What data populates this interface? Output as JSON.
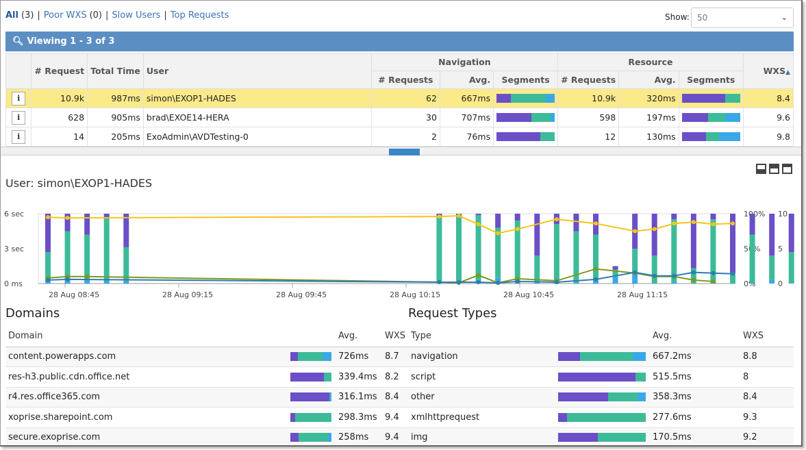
{
  "colors": {
    "purple": "#6a4fc7",
    "teal": "#3dbb98",
    "blue": "#3aa8e6",
    "yellow": "#f5c518",
    "green": "#7a9a1a",
    "darkblue": "#2f7bb3",
    "header_blue": "#5b8ec3",
    "highlight": "#faea8a"
  },
  "filters": [
    {
      "label": "All",
      "count": "(3)",
      "active": true
    },
    {
      "label": "Poor WXS",
      "count": "(0)",
      "active": false
    },
    {
      "label": "Slow Users",
      "count": "",
      "active": false
    },
    {
      "label": "Top Requests",
      "count": "",
      "active": false
    }
  ],
  "show": {
    "label": "Show:",
    "value": "50"
  },
  "viewing": "Viewing 1 - 3 of 3",
  "grid": {
    "group_navigation": "Navigation",
    "group_resource": "Resource",
    "h_request": "# Request",
    "h_total": "Total Time",
    "h_user": "User",
    "h_nav_req": "# Requests",
    "h_nav_avg": "Avg.",
    "h_nav_seg": "Segments",
    "h_res_req": "# Requests",
    "h_res_avg": "Avg.",
    "h_res_seg": "Segments",
    "h_wxs": "WXS",
    "rows": [
      {
        "info": "i",
        "req": "10.9k",
        "total": "987ms",
        "user": "simon\\EXOP1-HADES",
        "nreq": "62",
        "navg": "667ms",
        "nseg": [
          0.25,
          0.6,
          0.15
        ],
        "rreq": "10.9k",
        "ravg": "320ms",
        "rseg": [
          0.75,
          0.25,
          0
        ],
        "wxs": "8.4",
        "selected": true
      },
      {
        "info": "i",
        "req": "628",
        "total": "905ms",
        "user": "brad\\EXOE14-HERA",
        "nreq": "30",
        "navg": "707ms",
        "nseg": [
          0.6,
          0.33,
          0.07
        ],
        "rreq": "598",
        "ravg": "197ms",
        "rseg": [
          0.45,
          0.3,
          0.25
        ],
        "wxs": "9.6",
        "selected": false
      },
      {
        "info": "i",
        "req": "14",
        "total": "205ms",
        "user": "ExoAdmin\\AVDTesting-0",
        "nreq": "2",
        "navg": "76ms",
        "nseg": [
          0.75,
          0.25,
          0
        ],
        "rreq": "12",
        "ravg": "130ms",
        "rseg": [
          0.42,
          0.22,
          0.36
        ],
        "wxs": "9.8",
        "selected": false
      }
    ]
  },
  "user_title": "User: simon\\EXOP1-HADES",
  "chart_data": {
    "type": "bar",
    "y_left_ticks": [
      "6 sec",
      "3 sec",
      "0 ms"
    ],
    "y_right1_ticks": [
      "100%",
      "50%",
      "0%"
    ],
    "y_right2_ticks": [
      "10",
      "5",
      "0"
    ],
    "x_ticks": [
      "28 Aug 08:45",
      "28 Aug 09:15",
      "28 Aug 09:45",
      "28 Aug 10:15",
      "28 Aug 10:45",
      "28 Aug 11:15"
    ],
    "bars": [
      {
        "t": 0,
        "p": 0.55,
        "g": 0.4,
        "b": 0.05
      },
      {
        "t": 1,
        "p": 0.25,
        "g": 0.68,
        "b": 0.07
      },
      {
        "t": 2,
        "p": 0.3,
        "g": 0.65,
        "b": 0.05
      },
      {
        "t": 3,
        "p": 0.05,
        "g": 0.9,
        "b": 0.05
      },
      {
        "t": 4,
        "p": 0.48,
        "g": 0.48,
        "b": 0.04
      },
      {
        "t": 20,
        "p": 0.04,
        "g": 0.93,
        "b": 0.03
      },
      {
        "t": 21,
        "p": 0.04,
        "g": 0.94,
        "b": 0.02
      },
      {
        "t": 22,
        "p": 0.02,
        "g": 0.96,
        "b": 0.02
      },
      {
        "t": 23,
        "p": 0.2,
        "g": 0.72,
        "b": 0.08
      },
      {
        "t": 24,
        "p": 0.1,
        "g": 0.88,
        "b": 0.02
      },
      {
        "t": 25,
        "p": 0.6,
        "g": 0.38,
        "b": 0.02
      },
      {
        "t": 26,
        "p": 0.15,
        "g": 0.82,
        "b": 0.03
      },
      {
        "t": 27,
        "p": 0.25,
        "g": 0.73,
        "b": 0.02
      },
      {
        "t": 28,
        "p": 0.3,
        "g": 0.66,
        "b": 0.04
      },
      {
        "t": 29,
        "p": 0.05,
        "g": 0.1,
        "b": 0.1
      },
      {
        "t": 30,
        "p": 0.5,
        "g": 0.35,
        "b": 0.15
      },
      {
        "t": 31,
        "p": 0.6,
        "g": 0.4,
        "b": 0
      },
      {
        "t": 32,
        "p": 0.08,
        "g": 0.9,
        "b": 0.02
      },
      {
        "t": 33,
        "p": 0.78,
        "g": 0.22,
        "b": 0
      },
      {
        "t": 34,
        "p": 0.08,
        "g": 0.9,
        "b": 0.02
      },
      {
        "t": 35,
        "p": 0.85,
        "g": 0.15,
        "b": 0
      },
      {
        "t": 36,
        "p": 0.3,
        "g": 0.68,
        "b": 0.02
      },
      {
        "t": 37,
        "p": 0.6,
        "g": 0.35,
        "b": 0.05
      },
      {
        "t": 38,
        "p": 0.55,
        "g": 0.44,
        "b": 0.01
      },
      {
        "t": 39,
        "p": 0.95,
        "g": 0.05,
        "b": 0
      }
    ],
    "yellow_line": [
      [
        0,
        95
      ],
      [
        1,
        94
      ],
      [
        20,
        96
      ],
      [
        21,
        97
      ],
      [
        22,
        85
      ],
      [
        23,
        72
      ],
      [
        24,
        78
      ],
      [
        26,
        92
      ],
      [
        28,
        86
      ],
      [
        30,
        75
      ],
      [
        31,
        78
      ],
      [
        32,
        86
      ],
      [
        33,
        88
      ],
      [
        34,
        85
      ],
      [
        35,
        86
      ]
    ],
    "green_line": [
      [
        0,
        8
      ],
      [
        1,
        10
      ],
      [
        2,
        10
      ],
      [
        20,
        2
      ],
      [
        21,
        1
      ],
      [
        22,
        12
      ],
      [
        23,
        1
      ],
      [
        24,
        7
      ],
      [
        26,
        4
      ],
      [
        28,
        21
      ],
      [
        30,
        15
      ],
      [
        31,
        10
      ],
      [
        32,
        10
      ],
      [
        33,
        5
      ],
      [
        34,
        3
      ]
    ],
    "blue_line": [
      [
        0,
        5
      ],
      [
        1,
        6
      ],
      [
        20,
        2
      ],
      [
        21,
        2
      ],
      [
        22,
        2
      ],
      [
        23,
        1
      ],
      [
        24,
        3
      ],
      [
        26,
        2
      ],
      [
        28,
        6
      ],
      [
        30,
        16
      ],
      [
        31,
        11
      ],
      [
        32,
        11
      ],
      [
        33,
        16
      ],
      [
        34,
        15
      ],
      [
        35,
        14
      ]
    ]
  },
  "domains": {
    "title": "Domains",
    "h_domain": "Domain",
    "h_avg": "Avg.",
    "h_wxs": "WXS",
    "rows": [
      {
        "name": "content.powerapps.com",
        "seg": [
          0.18,
          0.6,
          0.22
        ],
        "avg": "726ms",
        "wxs": "8.7"
      },
      {
        "name": "res-h3.public.cdn.office.net",
        "seg": [
          0.82,
          0.18,
          0
        ],
        "avg": "339.4ms",
        "wxs": "8.2"
      },
      {
        "name": "r4.res.office365.com",
        "seg": [
          0.95,
          0.02,
          0.03
        ],
        "avg": "316.1ms",
        "wxs": "8.4"
      },
      {
        "name": "xoprise.sharepoint.com",
        "seg": [
          0.12,
          0.88,
          0
        ],
        "avg": "298.3ms",
        "wxs": "9.4"
      },
      {
        "name": "secure.exoprise.com",
        "seg": [
          0.2,
          0.72,
          0.08
        ],
        "avg": "258ms",
        "wxs": "9.4"
      }
    ]
  },
  "types": {
    "title": "Request Types",
    "h_type": "Type",
    "h_avg": "Avg.",
    "h_wxs": "WXS",
    "rows": [
      {
        "name": "navigation",
        "seg": [
          0.25,
          0.6,
          0.15
        ],
        "avg": "667.2ms",
        "wxs": "8.8"
      },
      {
        "name": "script",
        "seg": [
          0.88,
          0.12,
          0
        ],
        "avg": "515.5ms",
        "wxs": "8"
      },
      {
        "name": "other",
        "seg": [
          0.57,
          0.34,
          0.09
        ],
        "avg": "358.3ms",
        "wxs": "8.4"
      },
      {
        "name": "xmlhttprequest",
        "seg": [
          0.1,
          0.9,
          0
        ],
        "avg": "277.6ms",
        "wxs": "9.3"
      },
      {
        "name": "img",
        "seg": [
          0.45,
          0.55,
          0
        ],
        "avg": "170.5ms",
        "wxs": "9.2"
      }
    ]
  }
}
